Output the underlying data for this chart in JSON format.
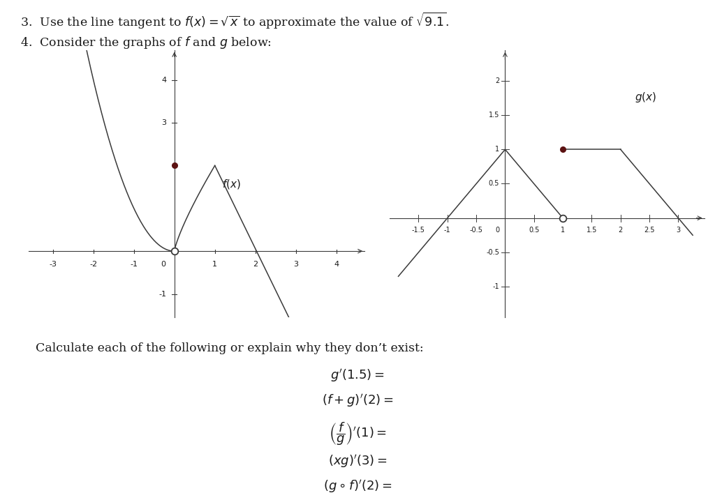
{
  "bg_color": "#ffffff",
  "text_color": "#1a1a1a",
  "graph_color": "#3a3a3a",
  "dot_fill_color": "#5c1212",
  "dot_open_color": "#ffffff",
  "dot_edge_color": "#3a3a3a",
  "line_color": "#3a3a3a",
  "label_color": "#1a1a1a"
}
